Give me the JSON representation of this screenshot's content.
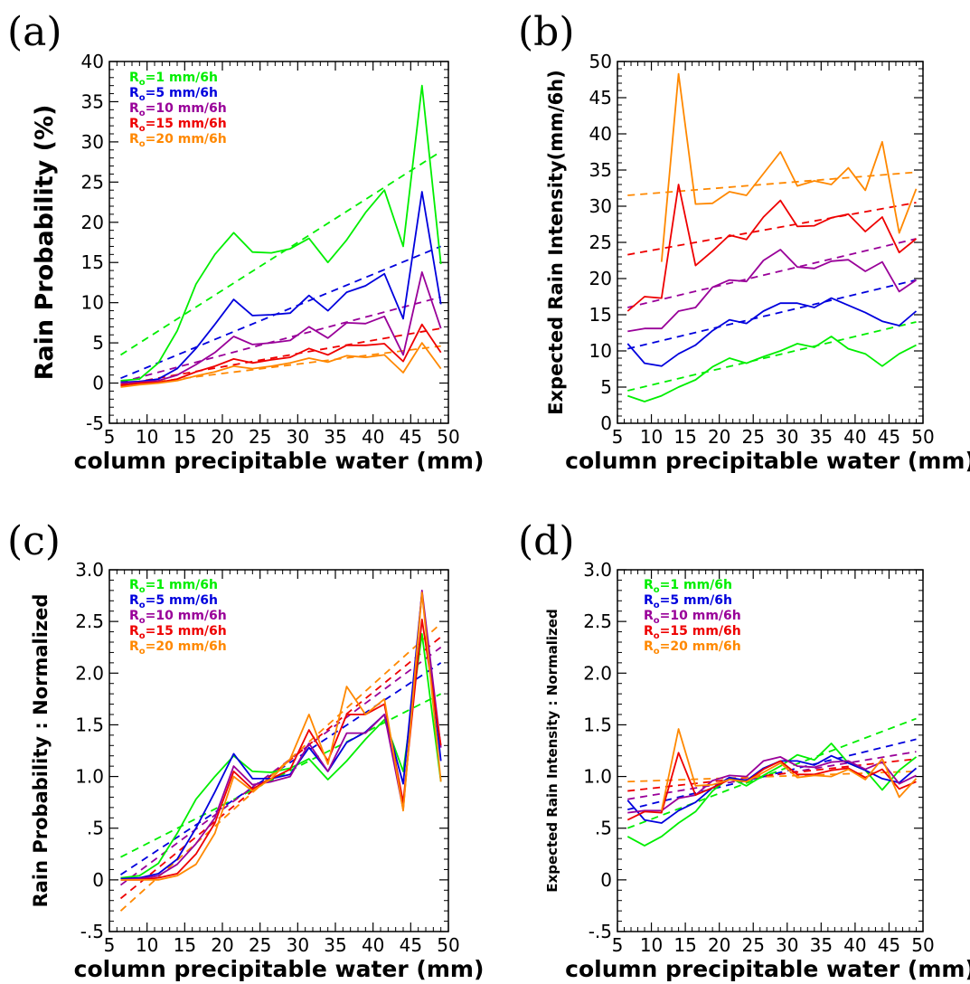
{
  "chart_data": [
    {
      "panel_label": "(a)",
      "type": "line",
      "xlabel": "column precipitable water (mm)",
      "ylabel": "Rain Probability (%)",
      "xlim": [
        5,
        50
      ],
      "ylim": [
        -5,
        40
      ],
      "xticks": [
        5,
        10,
        15,
        20,
        25,
        30,
        35,
        40,
        45,
        50
      ],
      "yticks": [
        -5,
        0,
        5,
        10,
        15,
        20,
        25,
        30,
        35,
        40
      ],
      "ytick_labels": [
        "-5",
        "0",
        "5",
        "10",
        "15",
        "20",
        "25",
        "30",
        "35",
        "40"
      ],
      "legend": [
        "R_o=1 mm/6h",
        "R_o=5 mm/6h",
        "R_o=10 mm/6h",
        "R_o=15 mm/6h",
        "R_o=20 mm/6h"
      ],
      "legend_position": "top-left",
      "x": [
        6.5,
        9,
        11.5,
        14,
        16.5,
        19,
        21.5,
        24,
        26.5,
        29,
        31.5,
        34,
        36.5,
        39,
        41.5,
        44,
        46.5,
        49
      ],
      "series": [
        {
          "name": "R_o=1 mm/6h",
          "color": "#00ee00",
          "values": [
            0.3,
            0.5,
            2.5,
            6.5,
            12.3,
            16,
            18.7,
            16.3,
            16.2,
            16.7,
            18,
            15,
            17.8,
            21.2,
            24,
            17,
            37,
            14.8
          ]
        },
        {
          "name": "R_o=5 mm/6h",
          "color": "#0000dd",
          "values": [
            0.1,
            0.2,
            0.5,
            1.8,
            4.3,
            7.3,
            10.4,
            8.4,
            8.5,
            8.7,
            10.9,
            9,
            11.3,
            12.1,
            13.6,
            8,
            23.8,
            9.8
          ]
        },
        {
          "name": "R_o=10 mm/6h",
          "color": "#990099",
          "values": [
            0,
            0.1,
            0.3,
            1,
            2.3,
            3.8,
            5.8,
            4.8,
            5,
            5.3,
            7,
            5.6,
            7.5,
            7.4,
            8.3,
            3.5,
            13.8,
            6.8
          ]
        },
        {
          "name": "R_o=15 mm/6h",
          "color": "#ee0000",
          "values": [
            -0.3,
            0,
            0.1,
            0.5,
            1.4,
            2.1,
            3,
            2.5,
            2.9,
            3.2,
            4.3,
            3.5,
            4.7,
            4.7,
            4.9,
            2.7,
            7.3,
            3.8
          ]
        },
        {
          "name": "R_o=20 mm/6h",
          "color": "#ff8800",
          "values": [
            -0.5,
            -0.2,
            0,
            0.3,
            0.9,
            1.4,
            2.1,
            1.8,
            2.1,
            2.5,
            3.1,
            2.6,
            3.4,
            3.2,
            3.5,
            1.3,
            5,
            1.8
          ]
        }
      ],
      "fit_lines": [
        {
          "name": "R_o=1 mm/6h",
          "color": "#00ee00",
          "x": [
            6.5,
            49
          ],
          "values": [
            3.5,
            28.8
          ]
        },
        {
          "name": "R_o=5 mm/6h",
          "color": "#0000dd",
          "x": [
            6.5,
            49
          ],
          "values": [
            0.6,
            17
          ]
        },
        {
          "name": "R_o=10 mm/6h",
          "color": "#990099",
          "x": [
            6.5,
            49
          ],
          "values": [
            0.1,
            10.7
          ]
        },
        {
          "name": "R_o=15 mm/6h",
          "color": "#ee0000",
          "x": [
            6.5,
            49
          ],
          "values": [
            -0.2,
            6.8
          ]
        },
        {
          "name": "R_o=20 mm/6h",
          "color": "#ff8800",
          "x": [
            6.5,
            49
          ],
          "values": [
            -0.4,
            4.6
          ]
        }
      ]
    },
    {
      "panel_label": "(b)",
      "type": "line",
      "xlabel": "column precipitable water (mm)",
      "ylabel": "Expected Rain Intensity(mm/6h)",
      "xlim": [
        5,
        50
      ],
      "ylim": [
        0,
        50
      ],
      "xticks": [
        5,
        10,
        15,
        20,
        25,
        30,
        35,
        40,
        45,
        50
      ],
      "yticks": [
        0,
        5,
        10,
        15,
        20,
        25,
        30,
        35,
        40,
        45,
        50
      ],
      "ytick_labels": [
        "0",
        "5",
        "10",
        "15",
        "20",
        "25",
        "30",
        "35",
        "40",
        "45",
        "50"
      ],
      "legend": [],
      "legend_position": "",
      "x": [
        6.5,
        9,
        11.5,
        14,
        16.5,
        19,
        21.5,
        24,
        26.5,
        29,
        31.5,
        34,
        36.5,
        39,
        41.5,
        44,
        46.5,
        49
      ],
      "series": [
        {
          "name": "R_o=1 mm/6h",
          "color": "#00ee00",
          "values": [
            3.8,
            3,
            3.8,
            5,
            6,
            7.8,
            9,
            8.3,
            9.2,
            10,
            11,
            10.5,
            12,
            10.3,
            9.6,
            7.9,
            9.6,
            10.8
          ]
        },
        {
          "name": "R_o=5 mm/6h",
          "color": "#0000dd",
          "values": [
            11,
            8.3,
            7.9,
            9.6,
            10.8,
            12.8,
            14.3,
            13.8,
            15.5,
            16.6,
            16.6,
            16,
            17.3,
            16.3,
            15.3,
            14.1,
            13.5,
            15.5
          ]
        },
        {
          "name": "R_o=10 mm/6h",
          "color": "#990099",
          "values": [
            12.7,
            13.1,
            13.1,
            15.5,
            16,
            18.8,
            19.8,
            19.6,
            22.5,
            24,
            21.6,
            21.4,
            22.4,
            22.6,
            21,
            22.3,
            18.2,
            19.8
          ]
        },
        {
          "name": "R_o=15 mm/6h",
          "color": "#ee0000",
          "values": [
            15.5,
            17.5,
            17.3,
            33,
            21.8,
            23.8,
            26,
            25.4,
            28.5,
            30.8,
            27.2,
            27.3,
            28.4,
            28.9,
            26.5,
            28.5,
            23.6,
            25.5
          ]
        },
        {
          "name": "R_o=20 mm/6h",
          "color": "#ff8800",
          "values": [
            null,
            null,
            22.3,
            48.3,
            30.3,
            30.4,
            32,
            31.5,
            34.5,
            37.5,
            32.8,
            33.5,
            33,
            35.3,
            32.2,
            38.9,
            26.3,
            32.4
          ]
        }
      ],
      "fit_lines": [
        {
          "name": "R_o=1 mm/6h",
          "color": "#00ee00",
          "x": [
            6.5,
            49
          ],
          "values": [
            4.5,
            14
          ]
        },
        {
          "name": "R_o=5 mm/6h",
          "color": "#0000dd",
          "x": [
            6.5,
            49
          ],
          "values": [
            10.3,
            19.8
          ]
        },
        {
          "name": "R_o=10 mm/6h",
          "color": "#990099",
          "x": [
            6.5,
            49
          ],
          "values": [
            16,
            25.5
          ]
        },
        {
          "name": "R_o=15 mm/6h",
          "color": "#ee0000",
          "x": [
            6.5,
            49
          ],
          "values": [
            23.3,
            30.5
          ]
        },
        {
          "name": "R_o=20 mm/6h",
          "color": "#ff8800",
          "x": [
            6.5,
            49
          ],
          "values": [
            31.5,
            34.7
          ]
        }
      ]
    },
    {
      "panel_label": "(c)",
      "type": "line",
      "xlabel": "column precipitable water (mm)",
      "ylabel": "Rain Probability : Normalized",
      "xlim": [
        5,
        50
      ],
      "ylim": [
        -0.5,
        3.0
      ],
      "xticks": [
        5,
        10,
        15,
        20,
        25,
        30,
        35,
        40,
        45,
        50
      ],
      "yticks": [
        -0.5,
        0,
        0.5,
        1.0,
        1.5,
        2.0,
        2.5,
        3.0
      ],
      "ytick_labels": [
        "-.5",
        "0",
        ".5",
        "1.0",
        "1.5",
        "2.0",
        "2.5",
        "3.0"
      ],
      "legend": [
        "R_o=1 mm/6h",
        "R_o=5 mm/6h",
        "R_o=10 mm/6h",
        "R_o=15 mm/6h",
        "R_o=20 mm/6h"
      ],
      "legend_position": "top-left",
      "x": [
        6.5,
        9,
        11.5,
        14,
        16.5,
        19,
        21.5,
        24,
        26.5,
        29,
        31.5,
        34,
        36.5,
        39,
        41.5,
        44,
        46.5,
        49
      ],
      "series": [
        {
          "name": "R_o=1 mm/6h",
          "color": "#00ee00",
          "values": [
            0.02,
            0.04,
            0.16,
            0.45,
            0.78,
            1.0,
            1.2,
            1.05,
            1.04,
            1.08,
            1.17,
            0.97,
            1.15,
            1.36,
            1.55,
            1.05,
            2.38,
            0.95
          ]
        },
        {
          "name": "R_o=5 mm/6h",
          "color": "#0000dd",
          "values": [
            0.01,
            0.02,
            0.06,
            0.2,
            0.5,
            0.85,
            1.22,
            0.98,
            0.98,
            1.02,
            1.28,
            1.05,
            1.33,
            1.43,
            1.6,
            0.93,
            2.78,
            1.15
          ]
        },
        {
          "name": "R_o=10 mm/6h",
          "color": "#990099",
          "values": [
            0.0,
            0.01,
            0.04,
            0.15,
            0.35,
            0.6,
            1.1,
            0.92,
            0.95,
            1.0,
            1.32,
            1.05,
            1.42,
            1.42,
            1.6,
            0.68,
            2.8,
            1.28
          ]
        },
        {
          "name": "R_o=15 mm/6h",
          "color": "#ee0000",
          "values": [
            0.0,
            0.0,
            0.02,
            0.06,
            0.25,
            0.55,
            1.05,
            0.88,
            0.98,
            1.07,
            1.45,
            1.15,
            1.6,
            1.6,
            1.7,
            0.75,
            2.52,
            1.3
          ]
        },
        {
          "name": "R_o=20 mm/6h",
          "color": "#ff8800",
          "values": [
            0.0,
            0.0,
            0.0,
            0.04,
            0.15,
            0.45,
            1.0,
            0.86,
            0.98,
            1.17,
            1.6,
            1.12,
            1.87,
            1.6,
            1.75,
            0.67,
            2.78,
            0.95
          ]
        }
      ],
      "fit_lines": [
        {
          "name": "R_o=1 mm/6h",
          "color": "#00ee00",
          "x": [
            6.5,
            49
          ],
          "values": [
            0.22,
            1.8
          ]
        },
        {
          "name": "R_o=5 mm/6h",
          "color": "#0000dd",
          "x": [
            6.5,
            49
          ],
          "values": [
            0.05,
            2.1
          ]
        },
        {
          "name": "R_o=10 mm/6h",
          "color": "#990099",
          "x": [
            6.5,
            49
          ],
          "values": [
            -0.05,
            2.25
          ]
        },
        {
          "name": "R_o=15 mm/6h",
          "color": "#ee0000",
          "x": [
            6.5,
            49
          ],
          "values": [
            -0.18,
            2.35
          ]
        },
        {
          "name": "R_o=20 mm/6h",
          "color": "#ff8800",
          "x": [
            6.5,
            49
          ],
          "values": [
            -0.3,
            2.48
          ]
        }
      ]
    },
    {
      "panel_label": "(d)",
      "type": "line",
      "xlabel": "column precipitable water (mm)",
      "ylabel": "Expected Rain Intensity : Normalized",
      "xlim": [
        5,
        50
      ],
      "ylim": [
        -0.5,
        3.0
      ],
      "xticks": [
        5,
        10,
        15,
        20,
        25,
        30,
        35,
        40,
        45,
        50
      ],
      "yticks": [
        -0.5,
        0,
        0.5,
        1.0,
        1.5,
        2.0,
        2.5,
        3.0
      ],
      "ytick_labels": [
        "-.5",
        "0",
        ".5",
        "1.0",
        "1.5",
        "2.0",
        "2.5",
        "3.0"
      ],
      "legend": [
        "R_o=1 mm/6h",
        "R_o=5 mm/6h",
        "R_o=10 mm/6h",
        "R_o=15 mm/6h",
        "R_o=20 mm/6h"
      ],
      "legend_position": "top-left",
      "x": [
        6.5,
        9,
        11.5,
        14,
        16.5,
        19,
        21.5,
        24,
        26.5,
        29,
        31.5,
        34,
        36.5,
        39,
        41.5,
        44,
        46.5,
        49
      ],
      "series": [
        {
          "name": "R_o=1 mm/6h",
          "color": "#00ee00",
          "values": [
            0.42,
            0.33,
            0.42,
            0.55,
            0.66,
            0.86,
            0.99,
            0.91,
            1.01,
            1.1,
            1.21,
            1.16,
            1.32,
            1.13,
            1.06,
            0.87,
            1.06,
            1.19
          ]
        },
        {
          "name": "R_o=5 mm/6h",
          "color": "#0000dd",
          "values": [
            0.77,
            0.58,
            0.55,
            0.67,
            0.75,
            0.89,
            0.99,
            0.96,
            1.08,
            1.15,
            1.15,
            1.11,
            1.2,
            1.13,
            1.06,
            0.98,
            0.94,
            1.08
          ]
        },
        {
          "name": "R_o=10 mm/6h",
          "color": "#990099",
          "values": [
            0.65,
            0.67,
            0.67,
            0.79,
            0.82,
            0.96,
            1.01,
            1.0,
            1.15,
            1.19,
            1.1,
            1.09,
            1.14,
            1.15,
            1.07,
            1.14,
            0.93,
            1.01
          ]
        },
        {
          "name": "R_o=15 mm/6h",
          "color": "#ee0000",
          "values": [
            0.58,
            0.66,
            0.65,
            1.23,
            0.82,
            0.89,
            0.97,
            0.95,
            1.07,
            1.15,
            1.02,
            1.02,
            1.06,
            1.08,
            0.99,
            1.07,
            0.88,
            0.95
          ]
        },
        {
          "name": "R_o=20 mm/6h",
          "color": "#ff8800",
          "values": [
            null,
            null,
            0.67,
            1.46,
            0.91,
            0.92,
            0.97,
            0.95,
            1.04,
            1.13,
            0.99,
            1.01,
            1.0,
            1.07,
            0.97,
            1.17,
            0.8,
            0.98
          ]
        }
      ],
      "fit_lines": [
        {
          "name": "R_o=1 mm/6h",
          "color": "#00ee00",
          "x": [
            6.5,
            49
          ],
          "values": [
            0.5,
            1.56
          ]
        },
        {
          "name": "R_o=5 mm/6h",
          "color": "#0000dd",
          "x": [
            6.5,
            49
          ],
          "values": [
            0.68,
            1.36
          ]
        },
        {
          "name": "R_o=10 mm/6h",
          "color": "#990099",
          "x": [
            6.5,
            49
          ],
          "values": [
            0.78,
            1.24
          ]
        },
        {
          "name": "R_o=15 mm/6h",
          "color": "#ee0000",
          "x": [
            6.5,
            49
          ],
          "values": [
            0.86,
            1.17
          ]
        },
        {
          "name": "R_o=20 mm/6h",
          "color": "#ff8800",
          "x": [
            6.5,
            49
          ],
          "values": [
            0.95,
            1.05
          ]
        }
      ]
    }
  ]
}
